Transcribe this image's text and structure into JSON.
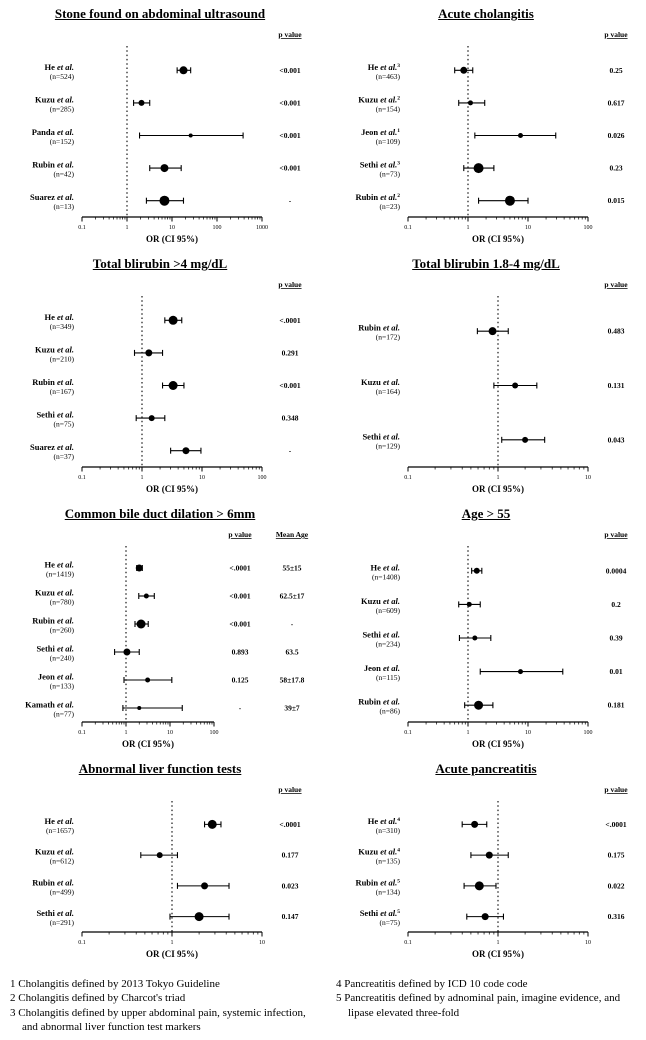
{
  "figure": {
    "footnotes_left": [
      "1 Cholangitis defined by 2013 Tokyo Guideline",
      "2 Cholangitis defined by Charcot's triad",
      "3 Cholangitis defined by upper abdominal pain, systemic infection, and abnormal liver function test markers"
    ],
    "footnotes_right": [
      "4 Pancreatitis defined by ICD 10 code code",
      "5 Pancreatitis defined by adnominal pain, imagine evidence, and lipase elevated three-fold"
    ]
  },
  "chart_data": [
    {
      "type": "forest",
      "title": "Stone found on abdominal ultrasound",
      "xlabel": "OR (CI 95%)",
      "p_header": "p value",
      "xticks": [
        0.1,
        1,
        10,
        100,
        1000
      ],
      "xrange": [
        0.1,
        1000
      ],
      "ref_line": 1,
      "studies": [
        {
          "label": "He",
          "etal": "et al.",
          "sup": "",
          "n_label": "(n=524)",
          "or": 18,
          "ci_low": 13,
          "ci_high": 26,
          "p": "<0.001",
          "marker": 4
        },
        {
          "label": "Kuzu",
          "etal": "et al.",
          "sup": "",
          "n_label": "(n=285)",
          "or": 2.1,
          "ci_low": 1.4,
          "ci_high": 3.2,
          "p": "<0.001",
          "marker": 3
        },
        {
          "label": "Panda",
          "etal": "et al.",
          "sup": "",
          "n_label": "(n=152)",
          "or": 26,
          "ci_low": 1.9,
          "ci_high": 380,
          "p": "<0.001",
          "marker": 2
        },
        {
          "label": "Rubin",
          "etal": "et al.",
          "sup": "",
          "n_label": "(n=42)",
          "or": 6.8,
          "ci_low": 3.2,
          "ci_high": 16,
          "p": "<0.001",
          "marker": 4
        },
        {
          "label": "Suarez",
          "etal": "et al.",
          "sup": "",
          "n_label": "(n=13)",
          "or": 6.8,
          "ci_low": 2.7,
          "ci_high": 18,
          "p": "-",
          "marker": 5
        }
      ]
    },
    {
      "type": "forest",
      "title": "Acute cholangitis",
      "xlabel": "OR (CI 95%)",
      "p_header": "p value",
      "xticks": [
        0.1,
        1,
        10,
        100
      ],
      "xrange": [
        0.1,
        100
      ],
      "ref_line": 1,
      "studies": [
        {
          "label": "He",
          "etal": "et al.",
          "sup": "3",
          "n_label": "(n=463)",
          "or": 0.85,
          "ci_low": 0.6,
          "ci_high": 1.2,
          "p": "0.25",
          "marker": 3.5
        },
        {
          "label": "Kuzu",
          "etal": "et al.",
          "sup": "2",
          "n_label": "(n=154)",
          "or": 1.1,
          "ci_low": 0.7,
          "ci_high": 1.9,
          "p": "0.617",
          "marker": 2.5
        },
        {
          "label": "Jeon",
          "etal": "et al.",
          "sup": "1",
          "n_label": "(n=109)",
          "or": 7.5,
          "ci_low": 1.3,
          "ci_high": 29,
          "p": "0.026",
          "marker": 2.5
        },
        {
          "label": "Sethi",
          "etal": "et al.",
          "sup": "3",
          "n_label": "(n=73)",
          "or": 1.5,
          "ci_low": 0.85,
          "ci_high": 2.7,
          "p": "0.23",
          "marker": 5
        },
        {
          "label": "Rubin",
          "etal": "et al.",
          "sup": "2",
          "n_label": "(n=23)",
          "or": 5,
          "ci_low": 1.5,
          "ci_high": 10,
          "p": "0.015",
          "marker": 5
        }
      ]
    },
    {
      "type": "forest",
      "title": "Total blirubin >4 mg/dL",
      "xlabel": "OR (CI 95%)",
      "p_header": "p value",
      "xticks": [
        0.1,
        1,
        10,
        100
      ],
      "xrange": [
        0.1,
        100
      ],
      "ref_line": 1,
      "studies": [
        {
          "label": "He",
          "etal": "et al.",
          "sup": "",
          "n_label": "(n=349)",
          "or": 3.3,
          "ci_low": 2.4,
          "ci_high": 4.6,
          "p": "<.0001",
          "marker": 4.5
        },
        {
          "label": "Kuzu",
          "etal": "et al.",
          "sup": "",
          "n_label": "(n=210)",
          "or": 1.3,
          "ci_low": 0.75,
          "ci_high": 2.2,
          "p": "0.291",
          "marker": 3.5
        },
        {
          "label": "Rubin",
          "etal": "et al.",
          "sup": "",
          "n_label": "(n=167)",
          "or": 3.3,
          "ci_low": 2.2,
          "ci_high": 5.0,
          "p": "<0.001",
          "marker": 4.5
        },
        {
          "label": "Sethi",
          "etal": "et al.",
          "sup": "",
          "n_label": "(n=75)",
          "or": 1.45,
          "ci_low": 0.8,
          "ci_high": 2.4,
          "p": "0.348",
          "marker": 3
        },
        {
          "label": "Suarez",
          "etal": "et al.",
          "sup": "",
          "n_label": "(n=37)",
          "or": 5.4,
          "ci_low": 3.0,
          "ci_high": 9.6,
          "p": "-",
          "marker": 3.5
        }
      ]
    },
    {
      "type": "forest",
      "title": "Total blirubin 1.8-4 mg/dL",
      "xlabel": "OR (CI 95%)",
      "p_header": "p value",
      "xticks": [
        0.1,
        1,
        10
      ],
      "xrange": [
        0.1,
        10
      ],
      "ref_line": 1,
      "studies": [
        {
          "label": "Rubin",
          "etal": "et al.",
          "sup": "",
          "n_label": "(n=172)",
          "or": 0.87,
          "ci_low": 0.59,
          "ci_high": 1.3,
          "p": "0.483",
          "marker": 4
        },
        {
          "label": "Kuzu",
          "etal": "et al.",
          "sup": "",
          "n_label": "(n=164)",
          "or": 1.55,
          "ci_low": 0.9,
          "ci_high": 2.7,
          "p": "0.131",
          "marker": 3
        },
        {
          "label": "Sethi",
          "etal": "et al.",
          "sup": "",
          "n_label": "(n=129)",
          "or": 2.0,
          "ci_low": 1.1,
          "ci_high": 3.3,
          "p": "0.043",
          "marker": 3
        }
      ]
    },
    {
      "type": "forest",
      "title": "Common bile duct dilation > 6mm",
      "xlabel": "OR (CI 95%)",
      "p_header": "p value",
      "age_header": "Mean Age",
      "xticks": [
        0.1,
        1,
        10,
        100
      ],
      "xrange": [
        0.1,
        100
      ],
      "ref_line": 1,
      "studies": [
        {
          "label": "He",
          "etal": "et al.",
          "sup": "",
          "n_label": "(n=1419)",
          "or": 2.0,
          "ci_low": 1.75,
          "ci_high": 2.35,
          "p": "<.0001",
          "mean_age": "55±15",
          "marker": 3.5
        },
        {
          "label": "Kuzu",
          "etal": "et al.",
          "sup": "",
          "n_label": "(n=780)",
          "or": 2.9,
          "ci_low": 1.95,
          "ci_high": 4.4,
          "p": "<0.001",
          "mean_age": "62.5±17",
          "marker": 2.5
        },
        {
          "label": "Rubin",
          "etal": "et al.",
          "sup": "",
          "n_label": "(n=260)",
          "or": 2.2,
          "ci_low": 1.6,
          "ci_high": 3.2,
          "p": "<0.001",
          "mean_age": "-",
          "marker": 4.5
        },
        {
          "label": "Sethi",
          "etal": "et al.",
          "sup": "",
          "n_label": "(n=240)",
          "or": 1.05,
          "ci_low": 0.55,
          "ci_high": 2.0,
          "p": "0.893",
          "mean_age": "63.5",
          "marker": 3.5
        },
        {
          "label": "Jeon",
          "etal": "et al.",
          "sup": "",
          "n_label": "(n=133)",
          "or": 3.1,
          "ci_low": 0.9,
          "ci_high": 11,
          "p": "0.125",
          "mean_age": "58±17.8",
          "marker": 2.5
        },
        {
          "label": "Kamath",
          "etal": "et al.",
          "sup": "",
          "n_label": "(n=77)",
          "or": 2.0,
          "ci_low": 0.85,
          "ci_high": 19,
          "p": "-",
          "mean_age": "39±7",
          "marker": 2
        }
      ]
    },
    {
      "type": "forest",
      "title": "Age > 55",
      "xlabel": "OR (CI 95%)",
      "p_header": "p value",
      "xticks": [
        0.1,
        1,
        10,
        100
      ],
      "xrange": [
        0.1,
        100
      ],
      "ref_line": 1,
      "studies": [
        {
          "label": "He",
          "etal": "et al.",
          "sup": "",
          "n_label": "(n=1408)",
          "or": 1.4,
          "ci_low": 1.15,
          "ci_high": 1.7,
          "p": "0.0004",
          "marker": 3
        },
        {
          "label": "Kuzu",
          "etal": "et al.",
          "sup": "",
          "n_label": "(n=609)",
          "or": 1.05,
          "ci_low": 0.7,
          "ci_high": 1.6,
          "p": "0.2",
          "marker": 2.5
        },
        {
          "label": "Sethi",
          "etal": "et al.",
          "sup": "",
          "n_label": "(n=234)",
          "or": 1.3,
          "ci_low": 0.72,
          "ci_high": 2.4,
          "p": "0.39",
          "marker": 2.5
        },
        {
          "label": "Jeon",
          "etal": "et al.",
          "sup": "",
          "n_label": "(n=115)",
          "or": 7.5,
          "ci_low": 1.6,
          "ci_high": 38,
          "p": "0.01",
          "marker": 2.5
        },
        {
          "label": "Rubin",
          "etal": "et al.",
          "sup": "",
          "n_label": "(n=86)",
          "or": 1.5,
          "ci_low": 0.88,
          "ci_high": 2.6,
          "p": "0.181",
          "marker": 4.5
        }
      ]
    },
    {
      "type": "forest",
      "title": "Abnormal liver function tests",
      "xlabel": "OR (CI 95%)",
      "p_header": "p value",
      "xticks": [
        0.1,
        1,
        10
      ],
      "xrange": [
        0.1,
        10
      ],
      "ref_line": 1,
      "studies": [
        {
          "label": "He",
          "etal": "et al.",
          "sup": "",
          "n_label": "(n=1657)",
          "or": 2.8,
          "ci_low": 2.3,
          "ci_high": 3.5,
          "p": "<.0001",
          "marker": 4.5
        },
        {
          "label": "Kuzu",
          "etal": "et al.",
          "sup": "",
          "n_label": "(n=612)",
          "or": 0.73,
          "ci_low": 0.45,
          "ci_high": 1.15,
          "p": "0.177",
          "marker": 3
        },
        {
          "label": "Rubin",
          "etal": "et al.",
          "sup": "",
          "n_label": "(n=499)",
          "or": 2.3,
          "ci_low": 1.15,
          "ci_high": 4.3,
          "p": "0.023",
          "marker": 3.5
        },
        {
          "label": "Sethi",
          "etal": "et al.",
          "sup": "",
          "n_label": "(n=291)",
          "or": 2.0,
          "ci_low": 0.95,
          "ci_high": 4.3,
          "p": "0.147",
          "marker": 4.5
        }
      ]
    },
    {
      "type": "forest",
      "title": "Acute pancreatitis",
      "xlabel": "OR (CI 95%)",
      "p_header": "p value",
      "xticks": [
        0.1,
        1,
        10
      ],
      "xrange": [
        0.1,
        10
      ],
      "ref_line": 1,
      "studies": [
        {
          "label": "He",
          "etal": "et al.",
          "sup": "4",
          "n_label": "(n=310)",
          "or": 0.55,
          "ci_low": 0.4,
          "ci_high": 0.75,
          "p": "<.0001",
          "marker": 3.5
        },
        {
          "label": "Kuzu",
          "etal": "et al.",
          "sup": "4",
          "n_label": "(n=135)",
          "or": 0.8,
          "ci_low": 0.5,
          "ci_high": 1.3,
          "p": "0.175",
          "marker": 3.5
        },
        {
          "label": "Rubin",
          "etal": "et al.",
          "sup": "5",
          "n_label": "(n=134)",
          "or": 0.62,
          "ci_low": 0.42,
          "ci_high": 0.95,
          "p": "0.022",
          "marker": 4.5
        },
        {
          "label": "Sethi",
          "etal": "et al.",
          "sup": "5",
          "n_label": "(n=75)",
          "or": 0.72,
          "ci_low": 0.45,
          "ci_high": 1.15,
          "p": "0.316",
          "marker": 3.5
        }
      ]
    }
  ]
}
